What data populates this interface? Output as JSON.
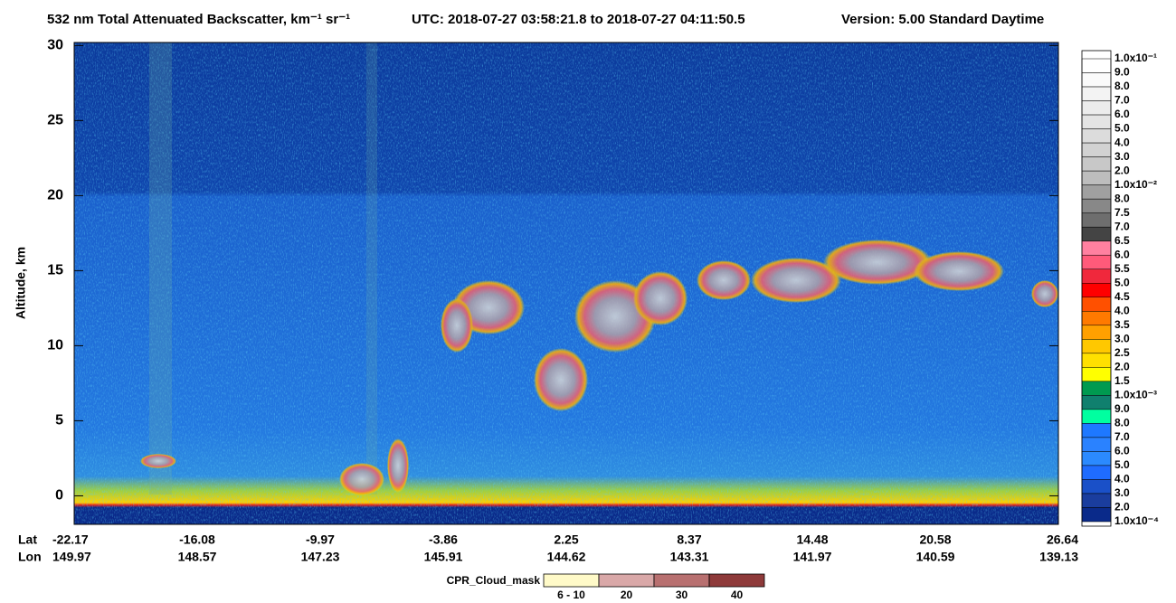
{
  "chart_data": {
    "type": "curtain",
    "title": "532 nm Total Attenuated Backscatter, km⁻¹ sr⁻¹",
    "time_range": "UTC:  2018-07-27 03:58:21.8  to  2018-07-27 04:11:50.5",
    "version": "Version: 5.00  Standard  Daytime",
    "ylabel": "Altitude, km",
    "ylim": [
      -1.9,
      30.2
    ],
    "yticks": [
      0,
      5,
      10,
      15,
      20,
      25,
      30
    ],
    "lat_label": "Lat",
    "lon_label": "Lon",
    "lat_ticks": [
      "-22.17",
      "-16.08",
      "-9.97",
      "-3.86",
      "2.25",
      "8.37",
      "14.48",
      "20.58",
      "26.64"
    ],
    "lon_ticks": [
      "149.97",
      "148.57",
      "147.23",
      "145.91",
      "144.62",
      "143.31",
      "141.97",
      "140.59",
      "139.13"
    ],
    "colorbar": {
      "labels": [
        "1.0x10⁻¹",
        "9.0",
        "8.0",
        "7.0",
        "6.0",
        "5.0",
        "4.0",
        "3.0",
        "2.0",
        "1.0x10⁻²",
        "8.0",
        "7.5",
        "7.0",
        "6.5",
        "6.0",
        "5.5",
        "5.0",
        "4.5",
        "4.0",
        "3.5",
        "3.0",
        "2.5",
        "2.0",
        "1.5",
        "1.0x10⁻³",
        "9.0",
        "8.0",
        "7.0",
        "6.0",
        "5.0",
        "4.0",
        "3.0",
        "2.0",
        "1.0x10⁻⁴"
      ],
      "colors": [
        "#ffffff",
        "#fafafa",
        "#f3f3f3",
        "#ececec",
        "#e4e4e4",
        "#dcdcdc",
        "#d2d2d2",
        "#c8c8c8",
        "#bdbdbd",
        "#a0a0a0",
        "#888888",
        "#6e6e6e",
        "#444444",
        "#ff80a0",
        "#ff5a7a",
        "#f0283c",
        "#ff0000",
        "#ff5000",
        "#ff7a00",
        "#ffa000",
        "#ffc800",
        "#ffe000",
        "#ffff00",
        "#009a50",
        "#10806e",
        "#00ffa0",
        "#1e78ff",
        "#2a82ff",
        "#2b8aff",
        "#1f6cff",
        "#1a50c8",
        "#1a3d9e",
        "#0a2a8a"
      ]
    },
    "cpr_legend": {
      "title": "CPR_Cloud_mask",
      "labels": [
        "6 - 10",
        "20",
        "30",
        "40"
      ],
      "colors": [
        "#fffac8",
        "#d9a8a8",
        "#b87070",
        "#8e3a3a"
      ]
    }
  }
}
